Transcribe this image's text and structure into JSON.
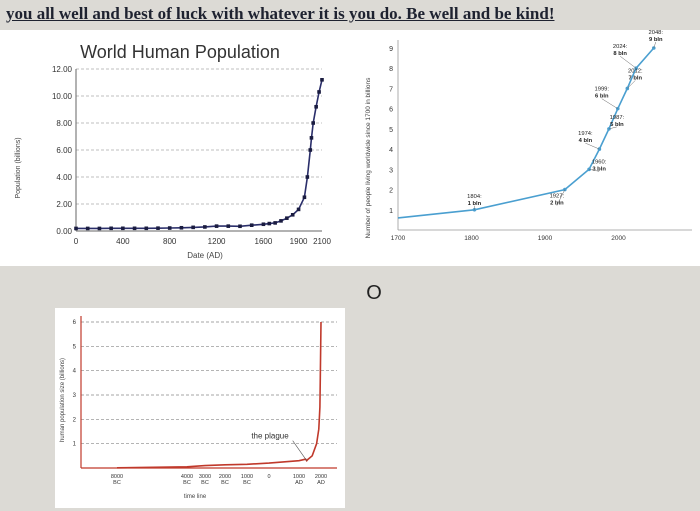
{
  "banner": "you all well and best of luck with whatever it is you do.  Be well and be kind!",
  "circle_glyph": "O",
  "chart_data": [
    {
      "type": "line",
      "title": "World Human Population",
      "xlabel": "Date (AD)",
      "ylabel": "Population (billions)",
      "xlim": [
        0,
        2100
      ],
      "ylim": [
        0,
        12
      ],
      "xticks": [
        "0",
        "400",
        "800",
        "1200",
        "1600",
        "1900",
        "2100"
      ],
      "yticks": [
        "0.00",
        "2.00",
        "4.00",
        "6.00",
        "8.00",
        "10.00",
        "12.00"
      ],
      "grid": true,
      "series": [
        {
          "x": [
            0,
            100,
            200,
            300,
            400,
            500,
            600,
            700,
            800,
            900,
            1000,
            1100,
            1200,
            1300,
            1400,
            1500,
            1600,
            1650,
            1700,
            1750,
            1800,
            1850,
            1900,
            1950,
            1975,
            2000,
            2010,
            2025,
            2050,
            2075,
            2100
          ],
          "y": [
            0.19,
            0.19,
            0.19,
            0.2,
            0.2,
            0.2,
            0.2,
            0.21,
            0.22,
            0.24,
            0.27,
            0.3,
            0.36,
            0.36,
            0.35,
            0.43,
            0.5,
            0.55,
            0.6,
            0.75,
            0.95,
            1.2,
            1.6,
            2.5,
            4.0,
            6.0,
            6.9,
            8.0,
            9.2,
            10.3,
            11.2
          ]
        }
      ]
    },
    {
      "type": "line",
      "ylabel": "Number of people living worldwide since 1700 in billions",
      "xlim": [
        1700,
        2100
      ],
      "ylim": [
        0,
        9
      ],
      "xticks": [
        "1700",
        "1800",
        "1900",
        "2000"
      ],
      "yticks": [
        "1",
        "2",
        "3",
        "4",
        "5",
        "6",
        "7",
        "8",
        "9"
      ],
      "grid": false,
      "series": [
        {
          "x": [
            1700,
            1804,
            1927,
            1960,
            1974,
            1987,
            1999,
            2012,
            2024,
            2048
          ],
          "y": [
            0.6,
            1,
            2,
            3,
            4,
            5,
            6,
            7,
            8,
            9
          ]
        }
      ],
      "annotations": [
        {
          "year": 1804,
          "value": 1,
          "lines": [
            "1804:",
            "1 bln"
          ]
        },
        {
          "year": 1927,
          "value": 2,
          "lines": [
            "1927:",
            "2 bln"
          ]
        },
        {
          "year": 1960,
          "value": 3,
          "lines": [
            "1960:",
            "3 bln"
          ]
        },
        {
          "year": 1974,
          "value": 4,
          "lines": [
            "1974:",
            "4 bln"
          ]
        },
        {
          "year": 1987,
          "value": 5,
          "lines": [
            "1987:",
            "5 bln"
          ]
        },
        {
          "year": 1999,
          "value": 6,
          "lines": [
            "1999:",
            "6 bln"
          ]
        },
        {
          "year": 2012,
          "value": 7,
          "lines": [
            "2012:",
            "7 bln"
          ]
        },
        {
          "year": 2024,
          "value": 8,
          "lines": [
            "2024:",
            "8 bln"
          ]
        },
        {
          "year": 2048,
          "value": 9,
          "lines": [
            "2048:",
            "9 bln"
          ]
        }
      ]
    },
    {
      "type": "line",
      "xlabel": "time line",
      "ylabel": "human population size (billions)",
      "ylim": [
        0,
        6
      ],
      "yticks": [
        "1",
        "2",
        "3",
        "4",
        "5",
        "6"
      ],
      "xticks": [
        {
          "top": "8000",
          "bottom": "BC"
        },
        {
          "top": "4000",
          "bottom": "BC"
        },
        {
          "top": "3000",
          "bottom": "BC"
        },
        {
          "top": "2000",
          "bottom": "BC"
        },
        {
          "top": "1000",
          "bottom": "BC"
        },
        {
          "top": "0",
          "bottom": ""
        },
        {
          "top": "1000",
          "bottom": "AD"
        },
        {
          "top": "2000",
          "bottom": "AD"
        }
      ],
      "grid": true,
      "annotation": "the plague",
      "series": [
        {
          "x": [
            -8000,
            -4000,
            -3000,
            -2000,
            -1000,
            0,
            1000,
            1300,
            1350,
            1400,
            1600,
            1800,
            1900,
            1950,
            1970,
            2000
          ],
          "y": [
            0.01,
            0.05,
            0.1,
            0.13,
            0.15,
            0.2,
            0.3,
            0.36,
            0.3,
            0.35,
            0.5,
            1.0,
            1.6,
            2.5,
            3.7,
            6.0
          ]
        }
      ]
    }
  ]
}
